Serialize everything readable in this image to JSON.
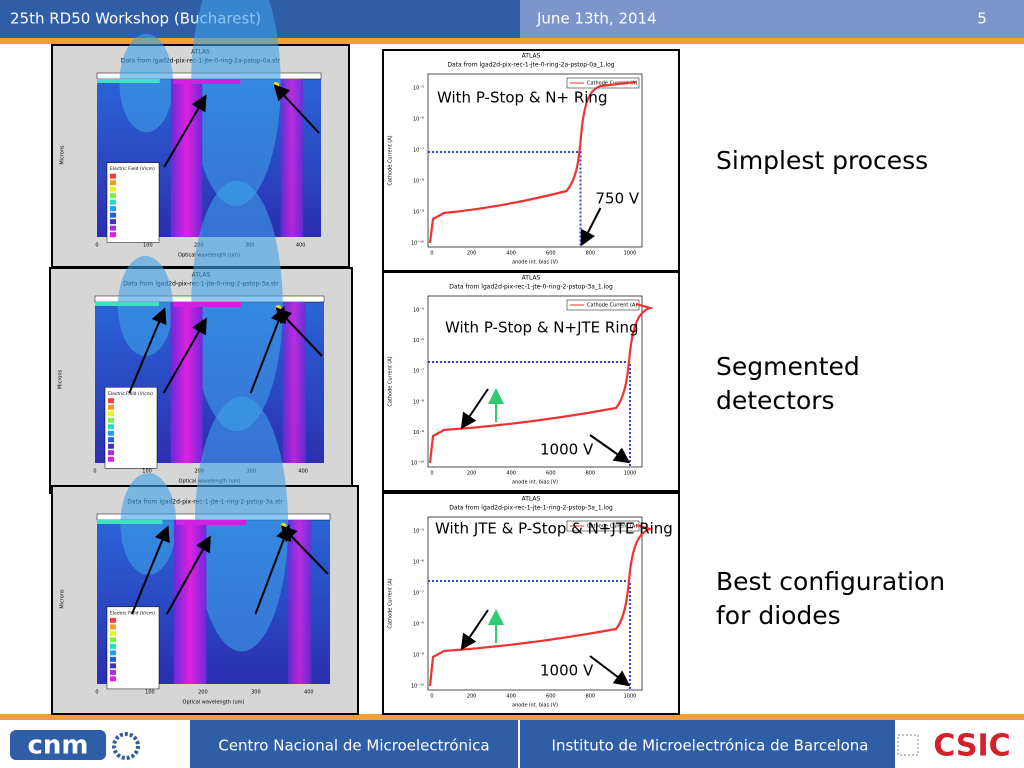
{
  "header": {
    "event": "25th RD50 Workshop (Bucharest)",
    "date": "June 13th, 2014",
    "page": "5"
  },
  "field_plots": [
    {
      "top": "ATLAS",
      "title": "Data from lgad2d-pix-rec-1-jte-0-ring-2a-pstop-0a.str",
      "ylabel": "Microns",
      "xlabel": "Optical wavelength (um)",
      "legend_title": "Electric Field (V/cm)",
      "xticks": [
        "0",
        "100",
        "200",
        "300",
        "400"
      ]
    },
    {
      "top": "ATLAS",
      "title": "Data from lgad2d-pix-rec-1-jte-0-ring-2-pstop-3a.str",
      "ylabel": "Microns",
      "xlabel": "Optical wavelength (um)",
      "legend_title": "Electric Field (V/cm)",
      "xticks": [
        "0",
        "100",
        "200",
        "300",
        "400"
      ]
    },
    {
      "title": "Data from lgad2d-pix-rec-1-jte-1-ring-2-pstop-3a.str",
      "ylabel": "Microns",
      "xlabel": "Optical wavelength (um)",
      "legend_title": "Electric Field (V/cm)",
      "xticks": [
        "0",
        "100",
        "200",
        "300",
        "400"
      ]
    }
  ],
  "iv_plots": [
    {
      "top": "ATLAS",
      "title": "Data from lgad2d-pix-rec-1-jte-0-ring-2a-pstop-0a_1.log",
      "legend": "Cathode Current (A)",
      "ylabel": "Cathode Current (A)",
      "xlabel": "anode int. bias (V)",
      "annotation": "With P-Stop & N+ Ring",
      "voltage": "750 V",
      "xticks": [
        "0",
        "200",
        "400",
        "600",
        "800",
        "1000"
      ],
      "yticks": [
        "10⁻⁵",
        "10⁻⁶",
        "10⁻⁷",
        "10⁻⁸",
        "10⁻⁹",
        "10⁻¹⁰"
      ]
    },
    {
      "top": "ATLAS",
      "title": "Data from lgad2d-pix-rec-1-jte-0-ring-2-pstop-3a_1.log",
      "legend": "Cathode Current (A)",
      "ylabel": "Cathode Current (A)",
      "xlabel": "anode int. bias (V)",
      "annotation": "With P-Stop & N+JTE Ring",
      "voltage": "1000 V",
      "xticks": [
        "0",
        "200",
        "400",
        "600",
        "800",
        "1000"
      ],
      "yticks": [
        "10⁻⁵",
        "10⁻⁶",
        "10⁻⁷",
        "10⁻⁸",
        "10⁻⁹",
        "10⁻¹⁰"
      ]
    },
    {
      "top": "ATLAS",
      "title": "Data from lgad2d-pix-rec-1-jte-1-ring-2-pstop-3a_1.log",
      "legend": "Cathode Current (A)",
      "ylabel": "Cathode Current (A)",
      "xlabel": "anode int. bias (V)",
      "annotation": "With JTE & P-Stop & N+JTE Ring",
      "voltage": "1000 V",
      "xticks": [
        "0",
        "200",
        "400",
        "600",
        "800",
        "1000"
      ],
      "yticks": [
        "10⁻⁵",
        "10⁻⁶",
        "10⁻⁷",
        "10⁻⁸",
        "10⁻⁹",
        "10⁻¹⁰"
      ]
    }
  ],
  "captions": [
    [
      "Simplest process"
    ],
    [
      "Segmented",
      "detectors"
    ],
    [
      "Best configuration",
      "for diodes"
    ]
  ],
  "footer": {
    "logo_left": "cnm",
    "center": "Centro Nacional de Microelectrónica",
    "right": "Instituto de Microelectrónica de Barcelona",
    "logo_right": "CSIC"
  }
}
